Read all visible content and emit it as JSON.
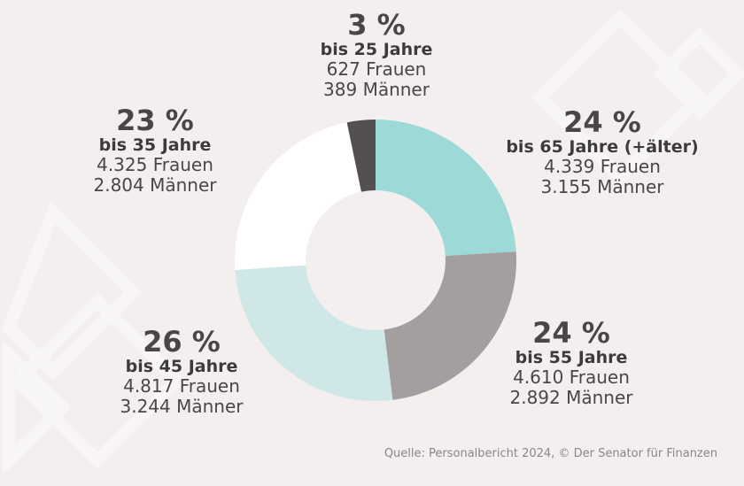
{
  "chart_data": {
    "type": "pie",
    "donut": true,
    "colors": [
      "#9dd9d6",
      "#a39f9e",
      "#cfe7e6",
      "#ffffff",
      "#545051"
    ],
    "slices": [
      {
        "percent_label": "24 %",
        "age": "bis 65 Jahre (+älter)",
        "frauen": "4.339 Frauen",
        "maenner": "3.155 Männer",
        "value": 7494
      },
      {
        "percent_label": "24 %",
        "age": "bis 55 Jahre",
        "frauen": "4.610 Frauen",
        "maenner": "2.892 Männer",
        "value": 7502
      },
      {
        "percent_label": "26 %",
        "age": "bis 45 Jahre",
        "frauen": "4.817 Frauen",
        "maenner": "3.244 Männer",
        "value": 8061
      },
      {
        "percent_label": "23 %",
        "age": "bis 35 Jahre",
        "frauen": "4.325 Frauen",
        "maenner": "2.804 Männer",
        "value": 7129
      },
      {
        "percent_label": "3 %",
        "age": "bis 25 Jahre",
        "frauen": "627 Frauen",
        "maenner": "389 Männer",
        "value": 1016
      }
    ]
  },
  "source": "Quelle: Personalbericht 2024, © Der Senator für Finanzen",
  "background": "#f2efee"
}
